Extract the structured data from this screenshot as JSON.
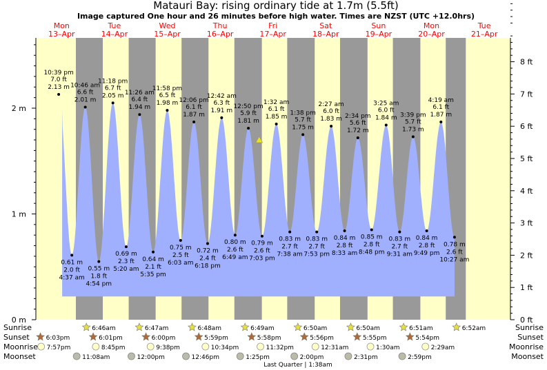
{
  "chart_data": {
    "type": "area",
    "title": "Matauri Bay: rising  ordinary tide at 1.7m (5.5ft)",
    "subtitle": "Image captured One hour and 26 minutes before high water. Times are NZST (UTC +12.0hrs)",
    "left_axis": {
      "unit": "m",
      "ylim": [
        0,
        2.65
      ],
      "ticks": [
        "0 m",
        "1 m",
        "2 m"
      ]
    },
    "right_axis": {
      "unit": "ft",
      "ticks": [
        "0 ft",
        "1 ft",
        "2 ft",
        "3 ft",
        "4 ft",
        "5 ft",
        "6 ft",
        "7 ft",
        "8 ft"
      ]
    },
    "x_range_days": [
      0,
      8.15
    ],
    "days": [
      {
        "name": "Mon",
        "date": "13–Apr"
      },
      {
        "name": "Tue",
        "date": "14–Apr"
      },
      {
        "name": "Wed",
        "date": "15–Apr"
      },
      {
        "name": "Thu",
        "date": "16–Apr"
      },
      {
        "name": "Fri",
        "date": "17–Apr"
      },
      {
        "name": "Sat",
        "date": "18–Apr"
      },
      {
        "name": "Sun",
        "date": "19–Apr"
      },
      {
        "name": "Mon",
        "date": "20–Apr"
      },
      {
        "name": "Tue",
        "date": "21–Apr"
      }
    ],
    "current": {
      "day": 4.24,
      "height_m": 1.7
    },
    "night_bands": [
      {
        "start": 0.77,
        "end": 1.28
      },
      {
        "start": 1.77,
        "end": 2.28
      },
      {
        "start": 2.77,
        "end": 3.28
      },
      {
        "start": 3.77,
        "end": 4.29
      },
      {
        "start": 4.77,
        "end": 5.29
      },
      {
        "start": 5.77,
        "end": 6.29
      },
      {
        "start": 6.77,
        "end": 7.29
      },
      {
        "start": 7.77,
        "end": 8.15
      }
    ],
    "tides": [
      {
        "type": "high",
        "day": 0.445,
        "time": "10:39 pm",
        "ft": "7.0 ft",
        "m": "2.13 m"
      },
      {
        "type": "low",
        "day": 0.694,
        "time": "4:37 am",
        "ft": "2.0 ft",
        "m": "0.61 m"
      },
      {
        "type": "high",
        "day": 0.948,
        "time": "10:46 am",
        "ft": "6.6 ft",
        "m": "2.01 m"
      },
      {
        "type": "low",
        "day": 1.205,
        "time": "4:54 pm",
        "ft": "1.8 ft",
        "m": "0.55 m"
      },
      {
        "type": "high",
        "day": 1.471,
        "time": "11:18 pm",
        "ft": "6.7 ft",
        "m": "2.05 m"
      },
      {
        "type": "low",
        "day": 1.722,
        "time": "5:20 am",
        "ft": "2.3 ft",
        "m": "0.69 m"
      },
      {
        "type": "high",
        "day": 1.976,
        "time": "11:26 am",
        "ft": "6.4 ft",
        "m": "1.94 m"
      },
      {
        "type": "low",
        "day": 2.233,
        "time": "5:35 pm",
        "ft": "2.1 ft",
        "m": "0.64 m"
      },
      {
        "type": "high",
        "day": 2.499,
        "time": "11:58 pm",
        "ft": "6.5 ft",
        "m": "1.98 m"
      },
      {
        "type": "low",
        "day": 2.752,
        "time": "6:03 am",
        "ft": "2.5 ft",
        "m": "0.75 m"
      },
      {
        "type": "high",
        "day": 3.004,
        "time": "12:06 pm",
        "ft": "6.1 ft",
        "m": "1.87 m"
      },
      {
        "type": "low",
        "day": 3.263,
        "time": "6:18 pm",
        "ft": "2.4 ft",
        "m": "0.72 m"
      },
      {
        "type": "high",
        "day": 3.529,
        "time": "12:42 am",
        "ft": "6.3 ft",
        "m": "1.91 m"
      },
      {
        "type": "low",
        "day": 3.784,
        "time": "6:49 am",
        "ft": "2.6 ft",
        "m": "0.80 m"
      },
      {
        "type": "high",
        "day": 4.035,
        "time": "12:50 pm",
        "ft": "5.9 ft",
        "m": "1.81 m"
      },
      {
        "type": "low",
        "day": 4.294,
        "time": "7:03 pm",
        "ft": "2.6 ft",
        "m": "0.79 m"
      },
      {
        "type": "high",
        "day": 4.564,
        "time": "1:32 am",
        "ft": "6.1 ft",
        "m": "1.85 m"
      },
      {
        "type": "low",
        "day": 4.819,
        "time": "7:38 am",
        "ft": "2.7 ft",
        "m": "0.83 m"
      },
      {
        "type": "high",
        "day": 5.067,
        "time": "1:38 pm",
        "ft": "5.7 ft",
        "m": "1.75 m"
      },
      {
        "type": "low",
        "day": 5.329,
        "time": "7:53 pm",
        "ft": "2.7 ft",
        "m": "0.83 m"
      },
      {
        "type": "high",
        "day": 5.602,
        "time": "2:27 am",
        "ft": "6.0 ft",
        "m": "1.83 m"
      },
      {
        "type": "low",
        "day": 5.856,
        "time": "8:33 am",
        "ft": "2.8 ft",
        "m": "0.84 m"
      },
      {
        "type": "high",
        "day": 6.107,
        "time": "2:34 pm",
        "ft": "5.6 ft",
        "m": "1.72 m"
      },
      {
        "type": "low",
        "day": 6.367,
        "time": "8:48 pm",
        "ft": "2.8 ft",
        "m": "0.85 m"
      },
      {
        "type": "high",
        "day": 6.642,
        "time": "3:25 am",
        "ft": "6.0 ft",
        "m": "1.84 m"
      },
      {
        "type": "low",
        "day": 6.897,
        "time": "9:31 am",
        "ft": "2.7 ft",
        "m": "0.83 m"
      },
      {
        "type": "high",
        "day": 7.152,
        "time": "3:39 pm",
        "ft": "5.7 ft",
        "m": "1.73 m"
      },
      {
        "type": "low",
        "day": 7.41,
        "time": "9:49 pm",
        "ft": "2.8 ft",
        "m": "0.84 m"
      },
      {
        "type": "high",
        "day": 7.68,
        "time": "4:19 am",
        "ft": "6.1 ft",
        "m": "1.87 m"
      },
      {
        "type": "low",
        "day": 7.936,
        "time": "10:27 am",
        "ft": "2.6 ft",
        "m": "0.78 m"
      }
    ],
    "start_level_m": 1.98,
    "rows": {
      "labels": [
        "Sunrise",
        "Sunset",
        "Moonrise",
        "Moonset"
      ],
      "sunrise": [
        {
          "day": 1.282,
          "time": "6:46am"
        },
        {
          "day": 2.283,
          "time": "6:47am"
        },
        {
          "day": 3.283,
          "time": "6:48am"
        },
        {
          "day": 4.284,
          "time": "6:49am"
        },
        {
          "day": 5.285,
          "time": "6:50am"
        },
        {
          "day": 6.285,
          "time": "6:50am"
        },
        {
          "day": 7.286,
          "time": "6:51am"
        },
        {
          "day": 8.286,
          "time": "6:52am"
        }
      ],
      "sunset": [
        {
          "day": 0.752,
          "time": "6:03pm"
        },
        {
          "day": 1.751,
          "time": "6:01pm"
        },
        {
          "day": 2.75,
          "time": "6:00pm"
        },
        {
          "day": 3.749,
          "time": "5:59pm"
        },
        {
          "day": 4.749,
          "time": "5:58pm"
        },
        {
          "day": 5.747,
          "time": "5:56pm"
        },
        {
          "day": 6.747,
          "time": "5:55pm"
        },
        {
          "day": 7.746,
          "time": "5:54pm"
        }
      ],
      "moonrise": [
        {
          "day": 0.831,
          "time": "7:57pm"
        },
        {
          "day": 1.865,
          "time": "8:45pm"
        },
        {
          "day": 2.901,
          "time": "9:38pm"
        },
        {
          "day": 3.94,
          "time": "10:34pm"
        },
        {
          "day": 4.981,
          "time": "11:32pm"
        },
        {
          "day": 6.021,
          "time": "12:31am"
        },
        {
          "day": 7.063,
          "time": "1:30am"
        },
        {
          "day": 8.103,
          "time": "2:29am"
        }
      ],
      "moonset": [
        {
          "day": 1.464,
          "time": "11:08am"
        },
        {
          "day": 2.5,
          "time": "12:00pm"
        },
        {
          "day": 3.532,
          "time": "12:46pm"
        },
        {
          "day": 4.559,
          "time": "1:25pm"
        },
        {
          "day": 5.583,
          "time": "2:00pm"
        },
        {
          "day": 6.605,
          "time": "2:31pm"
        },
        {
          "day": 7.625,
          "time": "2:59pm"
        }
      ],
      "moon_phase": "Last Quarter | 1:38am"
    }
  },
  "colors": {
    "day_bg": "#ffffc8",
    "night_bg": "#999999",
    "water": "#a0b0ff",
    "title": "#000000",
    "day_label": "#ff0000",
    "sun_star": "#e8e040",
    "sunset_star": "#b06a3a",
    "moonrise_circle": "#ffffc8",
    "moonset_circle": "#bbbbaa",
    "marker": "#e8e020"
  }
}
